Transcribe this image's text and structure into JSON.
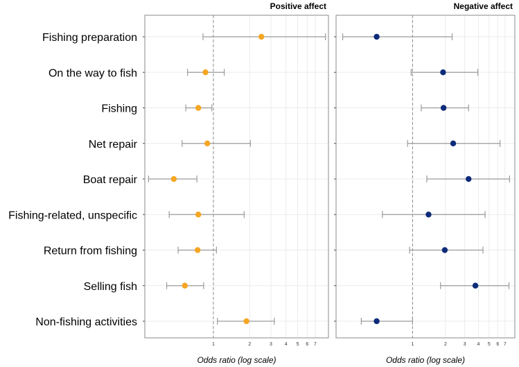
{
  "chart_data": {
    "type": "forest",
    "scale": "log",
    "xlabel": "Odds ratio (log scale)",
    "categories": [
      "Fishing preparation",
      "On the way to fish",
      "Fishing",
      "Net repair",
      "Boat repair",
      "Fishing-related, unspecific",
      "Return from fishing",
      "Selling fish",
      "Non-fishing activities"
    ],
    "x_ticks": [
      {
        "value": 1,
        "label": "1"
      },
      {
        "value": 2,
        "label": "2"
      },
      {
        "value": 3,
        "label": "3"
      },
      {
        "value": 4,
        "label": "4"
      },
      {
        "value": 5,
        "label": "5"
      },
      {
        "value": 6,
        "label": "6"
      },
      {
        "value": 7,
        "label": "7"
      }
    ],
    "reference_line": 1,
    "panels": [
      {
        "title": "Positive affect",
        "color": "#F5A623",
        "xlim": [
          0.27,
          9.0
        ],
        "series": [
          {
            "estimate": 2.5,
            "lower": 0.82,
            "upper": 8.5
          },
          {
            "estimate": 0.86,
            "lower": 0.61,
            "upper": 1.23
          },
          {
            "estimate": 0.75,
            "lower": 0.59,
            "upper": 0.97
          },
          {
            "estimate": 0.89,
            "lower": 0.55,
            "upper": 2.03
          },
          {
            "estimate": 0.47,
            "lower": 0.29,
            "upper": 0.73
          },
          {
            "estimate": 0.75,
            "lower": 0.43,
            "upper": 1.8
          },
          {
            "estimate": 0.74,
            "lower": 0.51,
            "upper": 1.06
          },
          {
            "estimate": 0.58,
            "lower": 0.41,
            "upper": 0.83
          },
          {
            "estimate": 1.88,
            "lower": 1.08,
            "upper": 3.2
          }
        ]
      },
      {
        "title": "Negative affect",
        "color": "#0D2B7A",
        "xlim": [
          0.2,
          8.6
        ],
        "series": [
          {
            "estimate": 0.47,
            "lower": 0.23,
            "upper": 2.3
          },
          {
            "estimate": 1.9,
            "lower": 0.97,
            "upper": 3.95
          },
          {
            "estimate": 1.92,
            "lower": 1.2,
            "upper": 3.25
          },
          {
            "estimate": 2.35,
            "lower": 0.9,
            "upper": 6.3
          },
          {
            "estimate": 3.25,
            "lower": 1.35,
            "upper": 7.7
          },
          {
            "estimate": 1.4,
            "lower": 0.53,
            "upper": 4.6
          },
          {
            "estimate": 1.97,
            "lower": 0.94,
            "upper": 4.4
          },
          {
            "estimate": 3.75,
            "lower": 1.8,
            "upper": 7.6
          },
          {
            "estimate": 0.47,
            "lower": 0.34,
            "upper": 1.0
          }
        ]
      }
    ]
  }
}
